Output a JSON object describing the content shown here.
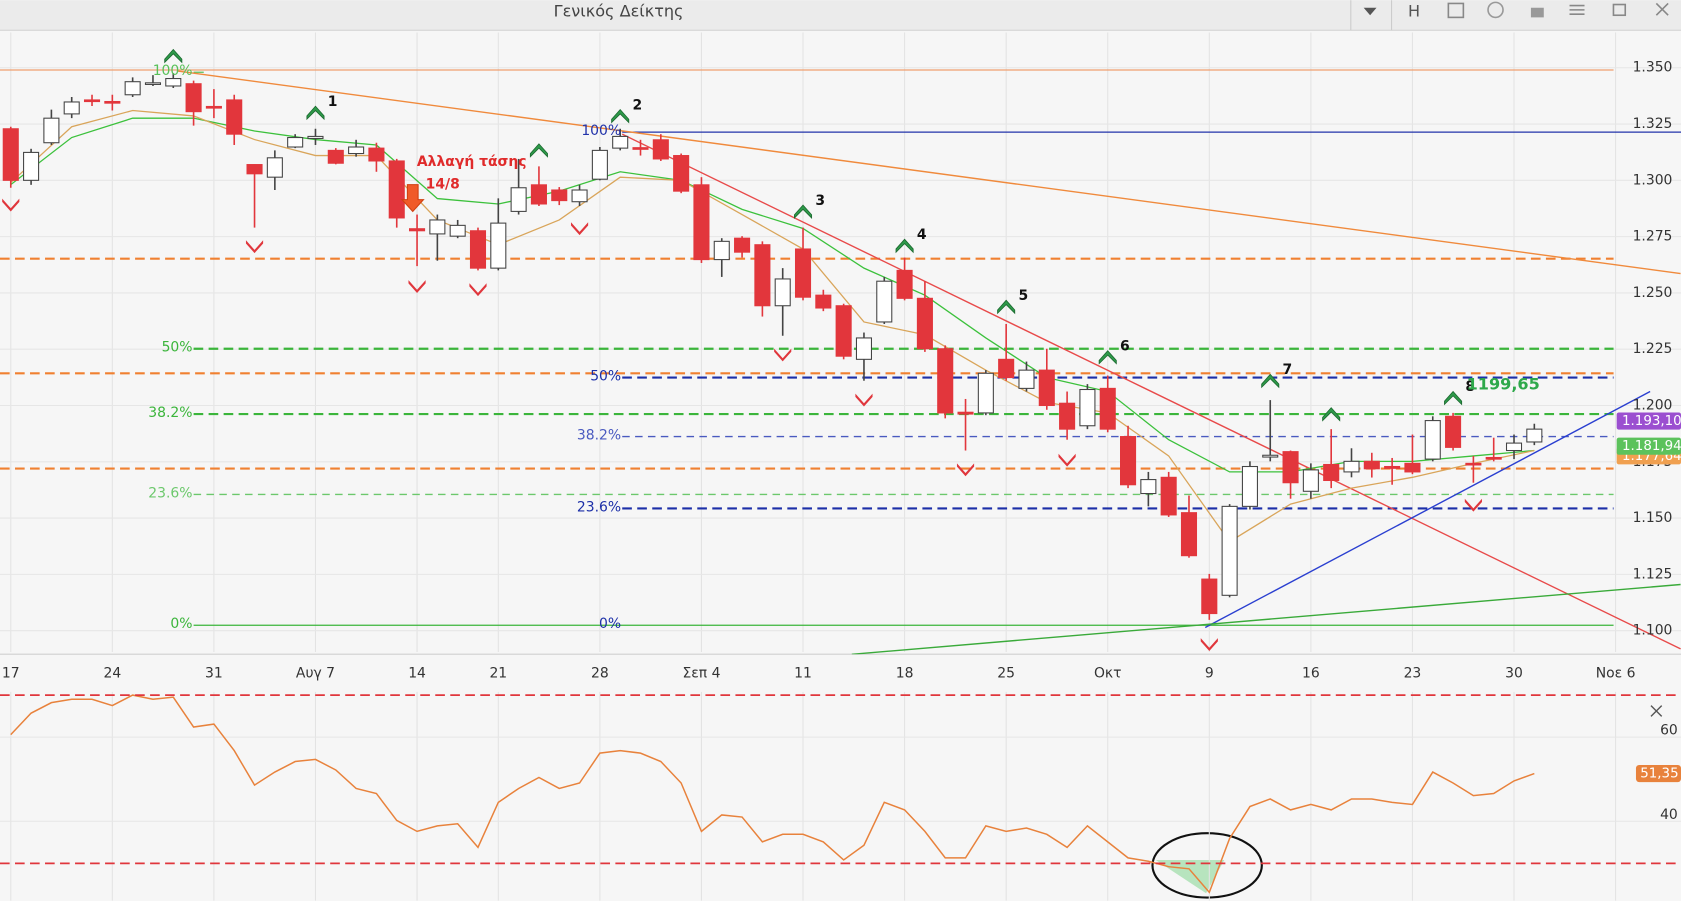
{
  "window_title": "Γενικός Δείκτης",
  "toolbar": {
    "h_button": "H"
  },
  "annotation": {
    "text": "Αλλαγή τάσης",
    "date": "14/8"
  },
  "chart_data": [
    {
      "type": "candlestick",
      "xlim": [
        -0.53,
        82.22
      ],
      "xticks": [
        {
          "value": 0,
          "label": "17"
        },
        {
          "value": 5,
          "label": "24"
        },
        {
          "value": 10,
          "label": "31"
        },
        {
          "value": 15,
          "label": "Αυγ 7"
        },
        {
          "value": 20,
          "label": "14"
        },
        {
          "value": 24,
          "label": "21"
        },
        {
          "value": 29,
          "label": "28"
        },
        {
          "value": 34,
          "label": "Σεπ 4"
        },
        {
          "value": 39,
          "label": "11"
        },
        {
          "value": 44,
          "label": "18"
        },
        {
          "value": 49,
          "label": "25"
        },
        {
          "value": 54,
          "label": "Οκτ"
        },
        {
          "value": 59,
          "label": "9"
        },
        {
          "value": 64,
          "label": "16"
        },
        {
          "value": 69,
          "label": "23"
        },
        {
          "value": 74,
          "label": "30"
        },
        {
          "value": 79,
          "label": "Νοε 6"
        }
      ],
      "ylim": [
        1090.5,
        1365.7
      ],
      "yticks": [
        {
          "value": 1100,
          "label": "1.100"
        },
        {
          "value": 1125,
          "label": "1.125"
        },
        {
          "value": 1150,
          "label": "1.150"
        },
        {
          "value": 1175,
          "label": "1.175"
        },
        {
          "value": 1200,
          "label": "1.200"
        },
        {
          "value": 1225,
          "label": "1.225"
        },
        {
          "value": 1250,
          "label": "1.250"
        },
        {
          "value": 1275,
          "label": "1.275"
        },
        {
          "value": 1300,
          "label": "1.300"
        },
        {
          "value": 1325,
          "label": "1.325"
        },
        {
          "value": 1350,
          "label": "1.350"
        }
      ],
      "grid": true,
      "up_color": "#ffffff",
      "down_color": "#e2363c",
      "open": [
        1322.9,
        1300,
        1316.7,
        1329.5,
        1335.7,
        1335,
        1338,
        1343,
        1341.9,
        1342.9,
        1332.8,
        1335.7,
        1307,
        1301.4,
        1314.8,
        1318.6,
        1313.3,
        1311.9,
        1314.3,
        1308.6,
        1278.5,
        1276.2,
        1275.2,
        1277.6,
        1261,
        1286.2,
        1298,
        1295.7,
        1290.5,
        1300.5,
        1314.3,
        1314.5,
        1318,
        1311,
        1298,
        1264.8,
        1274.3,
        1271.4,
        1244.3,
        1269.5,
        1249,
        1244.3,
        1220.5,
        1237.1,
        1260,
        1247.6,
        1225.2,
        1197,
        1196.7,
        1220.5,
        1207.6,
        1215.7,
        1201,
        1191,
        1207.6,
        1186.2,
        1160.9,
        1168.1,
        1152.4,
        1122.9,
        1115.7,
        1155.2,
        1177.1,
        1179.5,
        1161.9,
        1173.8,
        1170.5,
        1175.2,
        1172.9,
        1174.3,
        1176.2,
        1195.2,
        1174.3,
        1176.9,
        1180,
        1183.8
      ],
      "high": [
        1323.8,
        1314,
        1331.4,
        1337,
        1338,
        1338,
        1345.7,
        1346.7,
        1347.6,
        1344.3,
        1340.5,
        1338,
        1307.1,
        1313.3,
        1320.5,
        1322.9,
        1314.3,
        1318,
        1316.7,
        1309.5,
        1284.8,
        1284.8,
        1282.4,
        1279,
        1292,
        1309.5,
        1306.2,
        1297,
        1298,
        1314.8,
        1322.9,
        1318,
        1320.5,
        1311.9,
        1301.4,
        1274.3,
        1275.2,
        1272.9,
        1261,
        1279,
        1251.4,
        1245.2,
        1232.4,
        1257.1,
        1265.7,
        1255.2,
        1226.7,
        1202.9,
        1215.7,
        1236.2,
        1219.5,
        1225.2,
        1206.2,
        1209.5,
        1213.3,
        1191,
        1170.5,
        1170.5,
        1160,
        1125.2,
        1156.2,
        1175.2,
        1202.4,
        1180,
        1174.3,
        1189.5,
        1181,
        1179,
        1176.7,
        1187.1,
        1195.2,
        1196.7,
        1177.6,
        1185.7,
        1187.1,
        1191.9
      ],
      "low": [
        1296.7,
        1298,
        1315.7,
        1327.6,
        1333,
        1331,
        1337,
        1341.9,
        1341,
        1324.3,
        1327.6,
        1315.7,
        1279,
        1295.7,
        1314.3,
        1315.7,
        1307.1,
        1310.5,
        1303.8,
        1279,
        1261.9,
        1264.3,
        1274.3,
        1260,
        1260,
        1284.8,
        1288.6,
        1289,
        1288.6,
        1300,
        1313.3,
        1311,
        1308.6,
        1294.3,
        1263.3,
        1257.1,
        1265.7,
        1239.5,
        1231,
        1246.7,
        1241.9,
        1220.5,
        1211,
        1236.2,
        1246.7,
        1223.8,
        1194.3,
        1180,
        1195.7,
        1211,
        1206.2,
        1198.1,
        1184.8,
        1189.5,
        1188.1,
        1163.3,
        1155.2,
        1150.5,
        1132.4,
        1104.8,
        1114.8,
        1153.8,
        1175.2,
        1158.6,
        1158.6,
        1163.3,
        1168.1,
        1168,
        1164.8,
        1169.5,
        1175.2,
        1180,
        1165.7,
        1175.2,
        1176.2,
        1182.4
      ],
      "close": [
        1300,
        1312.4,
        1327.6,
        1334.8,
        1335.2,
        1334.5,
        1343.8,
        1343.3,
        1345.2,
        1330.5,
        1332.2,
        1320.5,
        1302.9,
        1310,
        1319,
        1319.5,
        1307.6,
        1314.8,
        1308.6,
        1283.3,
        1277.6,
        1282.4,
        1280,
        1261,
        1281,
        1296.7,
        1289.5,
        1291,
        1295.7,
        1313.3,
        1319.5,
        1314.1,
        1309.5,
        1295.2,
        1264.8,
        1272.9,
        1268.1,
        1244.3,
        1256.2,
        1248.1,
        1243.3,
        1221.9,
        1230,
        1255.2,
        1247.6,
        1225.2,
        1196.7,
        1196.2,
        1214.3,
        1212.4,
        1215.7,
        1200,
        1189.5,
        1207.1,
        1189.5,
        1164.8,
        1167.1,
        1151.4,
        1133.3,
        1107.6,
        1155.2,
        1172.9,
        1177.9,
        1165.7,
        1171.4,
        1166.7,
        1175.2,
        1171.9,
        1172.1,
        1170.5,
        1193.3,
        1181.4,
        1173.8,
        1176.7,
        1183.3,
        1189.5
      ],
      "series": [
        {
          "color": "#3cc13c",
          "x": [
            0,
            3,
            6,
            9,
            12,
            15,
            18,
            21,
            24,
            27,
            30,
            33,
            36,
            39,
            42,
            45,
            48,
            51,
            54,
            57,
            60,
            63,
            66,
            69,
            72,
            75
          ],
          "values": [
            1298.1,
            1319,
            1327.6,
            1327.6,
            1321.9,
            1318.1,
            1315.7,
            1291.9,
            1289.5,
            1295.2,
            1303.8,
            1300,
            1287.1,
            1278.6,
            1261,
            1249,
            1230,
            1212.4,
            1206.2,
            1184.8,
            1170.5,
            1170.5,
            1175.2,
            1175.2,
            1177.6,
            1180
          ]
        },
        {
          "color": "#d9a55a",
          "x": [
            0,
            3,
            6,
            9,
            12,
            15,
            18,
            21,
            24,
            27,
            30,
            33,
            36,
            39,
            42,
            45,
            48,
            51,
            54,
            57,
            60,
            63,
            66,
            69,
            72,
            75
          ],
          "values": [
            1299,
            1323.8,
            1331,
            1328.6,
            1318.1,
            1311,
            1311,
            1282.4,
            1271.4,
            1282.4,
            1301.4,
            1300,
            1284.8,
            1269.5,
            1237.1,
            1231.4,
            1215.7,
            1201.4,
            1196.7,
            1177.6,
            1139.5,
            1156.2,
            1163.3,
            1168.1,
            1174.3,
            1180
          ]
        }
      ],
      "trendlines": [
        {
          "color": "#f08a3c",
          "x": [
            8.18,
            82.2
          ],
          "values": [
            1348.6,
            1258.6
          ]
        },
        {
          "color": "#e84a4a",
          "x": [
            30.1,
            82.2
          ],
          "values": [
            1320.5,
            1091.9
          ]
        },
        {
          "color": "#2a3fd0",
          "x": [
            58.8,
            80.7
          ],
          "values": [
            1101.4,
            1206.2
          ]
        },
        {
          "color": "#3aaa3a",
          "x": [
            41.4,
            82.2
          ],
          "values": [
            1089.5,
            1120.5
          ]
        }
      ],
      "levels": [
        {
          "value": 1349,
          "color": "#f0a070",
          "style": "solid",
          "from": -0.53,
          "to": 78.9
        },
        {
          "value": 1265.2,
          "color": "#f08030",
          "style": "dashed",
          "from": -0.53,
          "to": 78.9
        },
        {
          "value": 1214.3,
          "color": "#f08030",
          "style": "dashed",
          "from": -0.53,
          "to": 78.9
        },
        {
          "value": 1172,
          "color": "#f08030",
          "style": "dashed",
          "from": -0.53,
          "to": 78.9
        },
        {
          "value": 1348,
          "color": "#58c058",
          "style": "solid",
          "from": 9,
          "to": 9.5,
          "label": "100%"
        },
        {
          "value": 1225.2,
          "color": "#3bb53b",
          "style": "dashed",
          "from": 9,
          "to": 78.9,
          "label": "50%"
        },
        {
          "value": 1196.2,
          "color": "#3bb53b",
          "style": "dashed",
          "from": 9,
          "to": 78.9,
          "label": "38.2%"
        },
        {
          "value": 1160.5,
          "color": "#6cc86c",
          "style": "thin",
          "from": 9,
          "to": 78.9,
          "label": "23.6%"
        },
        {
          "value": 1102.4,
          "color": "#3bb53b",
          "style": "solid",
          "from": 9,
          "to": 78.9,
          "label": "0%"
        },
        {
          "value": 1321.4,
          "color": "#2233aa",
          "style": "solid",
          "from": 30.1,
          "to": 82.22,
          "label": "100%"
        },
        {
          "value": 1212.4,
          "color": "#1c2fa8",
          "style": "dashed",
          "from": 30.1,
          "to": 78.9,
          "label": "50%"
        },
        {
          "value": 1186.2,
          "color": "#4a5ac0",
          "style": "thin",
          "from": 30.1,
          "to": 78.9,
          "label": "38.2%"
        },
        {
          "value": 1154.3,
          "color": "#1c2fa8",
          "style": "dashed",
          "from": 30.1,
          "to": 78.9,
          "label": "23.6%"
        },
        {
          "value": 1102.4,
          "color": "#1c2fa8",
          "style": "none",
          "from": 30.1,
          "to": 30.1,
          "label": "0%"
        }
      ],
      "signals_up": {
        "color": "#2e9a4a",
        "x": [
          8,
          15,
          26,
          30,
          39,
          44,
          49,
          54,
          62,
          65,
          71
        ],
        "values": [
          1356.2,
          1331,
          1314.3,
          1329.5,
          1287.1,
          1271.9,
          1244.8,
          1222.4,
          1211.9,
          1197.1,
          1204.3
        ],
        "labels": [
          null,
          "1",
          null,
          "2",
          "3",
          "4",
          "5",
          "6",
          "7",
          null,
          "8"
        ]
      },
      "signals_down": {
        "color": "#e0363c",
        "x": [
          0,
          12,
          20,
          23,
          28,
          38,
          42,
          47,
          52,
          59,
          72
        ],
        "values": [
          1289.5,
          1271,
          1253.3,
          1251.9,
          1279,
          1222.9,
          1202.9,
          1171.9,
          1176.2,
          1094.3,
          1156.2
        ]
      },
      "value_note": {
        "value": 1199.65,
        "label": "1199,65",
        "color": "#2ea84a"
      },
      "price_labels": [
        {
          "value": 1177.64,
          "label": "1.177,64",
          "color": "#f0a050"
        },
        {
          "value": 1193.1,
          "label": "1.193,10",
          "color": "#9b4fd0"
        },
        {
          "value": 1181.94,
          "label": "1.181,94",
          "color": "#5cc25c"
        }
      ]
    },
    {
      "type": "line",
      "xlim": [
        -0.53,
        82.22
      ],
      "ylim": [
        21.1,
        70.8
      ],
      "yticks": [
        40,
        60
      ],
      "levels": [
        70,
        30
      ],
      "level_color": "#e0363c",
      "color": "#e8823c",
      "values": [
        60.6,
        65.7,
        68.2,
        69.0,
        69.0,
        67.5,
        70,
        69.0,
        69.5,
        62.4,
        63.1,
        56.8,
        48.6,
        51.7,
        54.2,
        54.7,
        52.2,
        47.8,
        46.6,
        40.2,
        37.6,
        38.9,
        39.4,
        33.8,
        44.5,
        47.8,
        50.4,
        47.8,
        49.1,
        56.2,
        56.8,
        56.2,
        54.2,
        49.1,
        37.6,
        41.5,
        41.0,
        35.1,
        36.9,
        36.9,
        35.1,
        30.8,
        34.3,
        44.5,
        42.7,
        37.6,
        31.3,
        31.3,
        38.9,
        37.6,
        38.4,
        36.9,
        33.8,
        38.9,
        35.1,
        31.3,
        30.5,
        29.2,
        28.7,
        23.1,
        35.9,
        43.5,
        45.3,
        42.7,
        44.0,
        42.7,
        45.3,
        45.3,
        44.5,
        44.0,
        51.7,
        49.1,
        46.1,
        46.6,
        49.6,
        51.35
      ],
      "last_value": {
        "value": 51.35,
        "label": "51,35"
      }
    }
  ]
}
